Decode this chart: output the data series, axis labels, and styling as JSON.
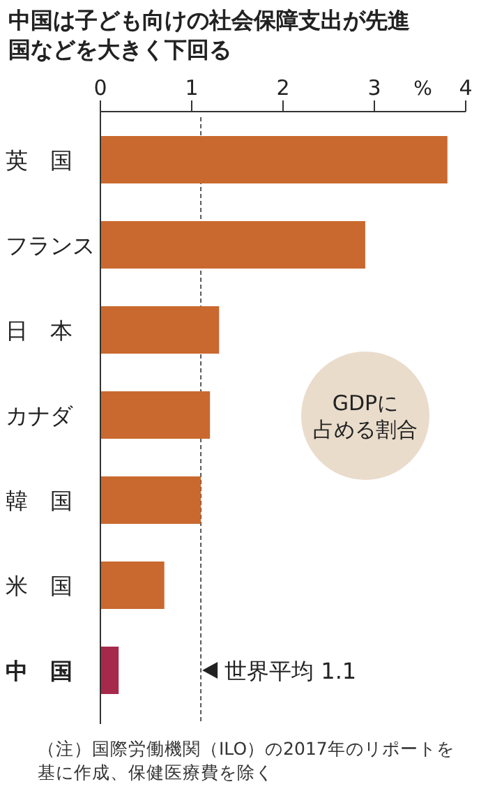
{
  "chart_data": {
    "type": "bar",
    "orientation": "horizontal",
    "title": "中国は子ども向けの社会保障支出が先進国などを大きく下回る",
    "xlabel": "%",
    "categories": [
      "英　国",
      "フランス",
      "日　本",
      "カナダ",
      "韓　国",
      "米　国",
      "中　国"
    ],
    "values": [
      3.8,
      2.9,
      1.3,
      1.2,
      1.1,
      0.7,
      0.2
    ],
    "colors": [
      "#c9692f",
      "#c9692f",
      "#c9692f",
      "#c9692f",
      "#c9692f",
      "#c9692f",
      "#a6294c"
    ],
    "xlim": [
      0,
      4
    ],
    "xticks": [
      0,
      1,
      2,
      3,
      4
    ],
    "ref_lines": [
      {
        "axis": "x",
        "value": 1.1,
        "label": "世界平均 1.1",
        "line_style": "dashed",
        "color": "#333333"
      }
    ],
    "annotations": [
      "GDPに占める割合",
      "（注）国際労働機関（ILO）の2017年のリポートを基に作成、保健医療費を除く"
    ]
  }
}
